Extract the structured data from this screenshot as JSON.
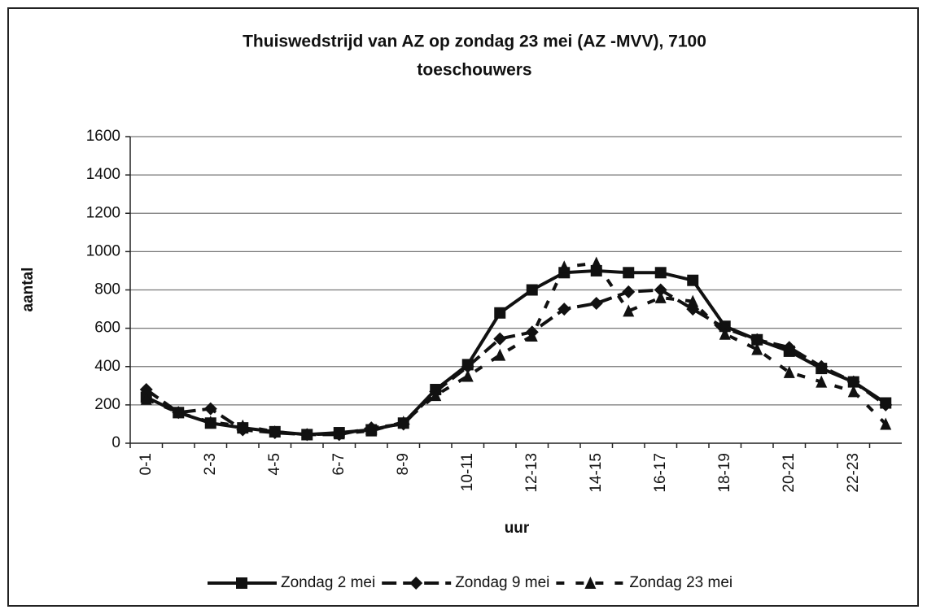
{
  "chart_data": {
    "type": "line",
    "title": [
      "Thuiswedstrijd van AZ op zondag 23 mei (AZ -MVV), 7100",
      "toeschouwers"
    ],
    "x_label": "uur",
    "y_label": "aantal",
    "categories": [
      "0-1",
      null,
      "2-3",
      null,
      "4-5",
      null,
      "6-7",
      null,
      "8-9",
      null,
      "10-11",
      null,
      "12-13",
      null,
      "14-15",
      null,
      "16-17",
      null,
      "18-19",
      null,
      "20-21",
      null,
      "22-23",
      null
    ],
    "ylim": [
      0,
      1600
    ],
    "yticks": [
      0,
      200,
      400,
      600,
      800,
      1000,
      1200,
      1400,
      1600
    ],
    "grid": true,
    "legend": "bottom",
    "series": [
      {
        "name": "Zondag 2 mei",
        "color": "#111111",
        "marker": "square",
        "line_style": "solid",
        "values": [
          240,
          160,
          105,
          80,
          60,
          45,
          55,
          70,
          105,
          280,
          410,
          680,
          800,
          890,
          900,
          890,
          890,
          850,
          610,
          540,
          480,
          390,
          320,
          210
        ]
      },
      {
        "name": "Zondag 9 mei",
        "color": "#111111",
        "marker": "diamond",
        "line_style": "dashed",
        "values": [
          280,
          160,
          180,
          70,
          55,
          45,
          45,
          80,
          100,
          270,
          400,
          545,
          580,
          700,
          730,
          790,
          800,
          700,
          600,
          540,
          500,
          400,
          320,
          200
        ]
      },
      {
        "name": "Zondag 23 mei",
        "color": "#111111",
        "marker": "triangle",
        "line_style": "dotted",
        "values": [
          230,
          160,
          110,
          90,
          60,
          45,
          50,
          65,
          110,
          250,
          350,
          460,
          560,
          920,
          940,
          690,
          760,
          740,
          570,
          490,
          370,
          320,
          270,
          100
        ]
      }
    ]
  }
}
